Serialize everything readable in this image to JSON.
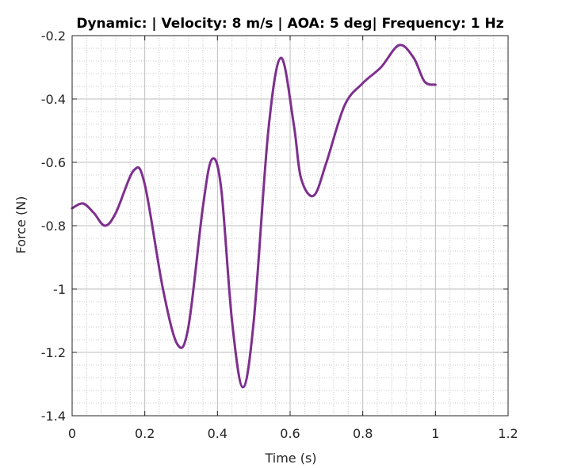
{
  "chart_data": {
    "type": "line",
    "title": "Dynamic:  | Velocity: 8 m/s | AOA: 5 deg| Frequency: 1 Hz",
    "xlabel": "Time (s)",
    "ylabel": "Force (N)",
    "xlim": [
      0,
      1.2
    ],
    "ylim": [
      -1.4,
      -0.2
    ],
    "x_ticks": [
      0,
      0.2,
      0.4,
      0.6,
      0.8,
      1,
      1.2
    ],
    "x_tick_labels": [
      "0",
      "0.2",
      "0.4",
      "0.6",
      "0.8",
      "1",
      "1.2"
    ],
    "y_ticks": [
      -1.4,
      -1.2,
      -1,
      -0.8,
      -0.6,
      -0.4,
      -0.2
    ],
    "y_tick_labels": [
      "-1.4",
      "-1.2",
      "-1",
      "-0.8",
      "-0.6",
      "-0.4",
      "-0.2"
    ],
    "grid": true,
    "minor_grid": true,
    "series": [
      {
        "color": "#7E2F8E",
        "x": [
          0,
          0.03,
          0.06,
          0.09,
          0.12,
          0.17,
          0.2,
          0.25,
          0.29,
          0.32,
          0.36,
          0.385,
          0.41,
          0.44,
          0.47,
          0.5,
          0.54,
          0.575,
          0.61,
          0.63,
          0.665,
          0.7,
          0.75,
          0.8,
          0.85,
          0.9,
          0.94,
          0.97,
          1.0
        ],
        "y": [
          -0.745,
          -0.73,
          -0.76,
          -0.8,
          -0.76,
          -0.625,
          -0.67,
          -1.0,
          -1.175,
          -1.12,
          -0.74,
          -0.59,
          -0.68,
          -1.1,
          -1.31,
          -1.1,
          -0.5,
          -0.27,
          -0.48,
          -0.65,
          -0.705,
          -0.6,
          -0.42,
          -0.35,
          -0.3,
          -0.23,
          -0.27,
          -0.345,
          -0.355
        ]
      }
    ]
  }
}
